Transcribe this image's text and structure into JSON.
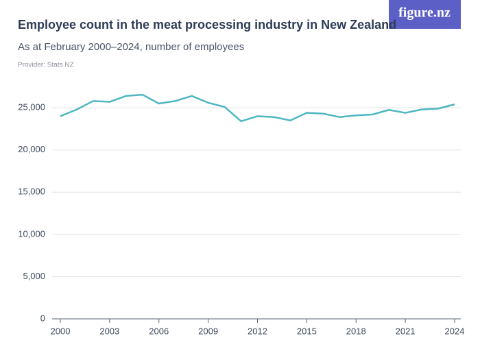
{
  "logo": "figure.nz",
  "chart_data": {
    "type": "line",
    "title": "Employee count in the meat processing industry in New Zealand",
    "subtitle": "As at February 2000–2024, number of employees",
    "source": "Provider: Stats NZ",
    "x": [
      2000,
      2001,
      2002,
      2003,
      2004,
      2005,
      2006,
      2007,
      2008,
      2009,
      2010,
      2011,
      2012,
      2013,
      2014,
      2015,
      2016,
      2017,
      2018,
      2019,
      2020,
      2021,
      2022,
      2023,
      2024
    ],
    "series": [
      {
        "name": "Employees",
        "color": "#4db6c1",
        "values": [
          24000,
          24800,
          25800,
          25700,
          26400,
          26550,
          25500,
          25800,
          26400,
          25600,
          25100,
          23400,
          24000,
          23900,
          23500,
          24400,
          24300,
          23900,
          24100,
          24200,
          24750,
          24400,
          24800,
          24900,
          25400
        ]
      }
    ],
    "xlim": [
      2000,
      2024
    ],
    "xticks": [
      2000,
      2003,
      2006,
      2009,
      2012,
      2015,
      2018,
      2021,
      2024
    ],
    "ylim": [
      0,
      26800
    ],
    "yticks": [
      0,
      {
        "value": 5000,
        "label": "5,000"
      },
      {
        "value": 10000,
        "label": "10,000"
      },
      {
        "value": 15000,
        "label": "15,000"
      },
      {
        "value": 20000,
        "label": "20,000"
      },
      {
        "value": 25000,
        "label": "25,000"
      }
    ],
    "grid": true
  }
}
